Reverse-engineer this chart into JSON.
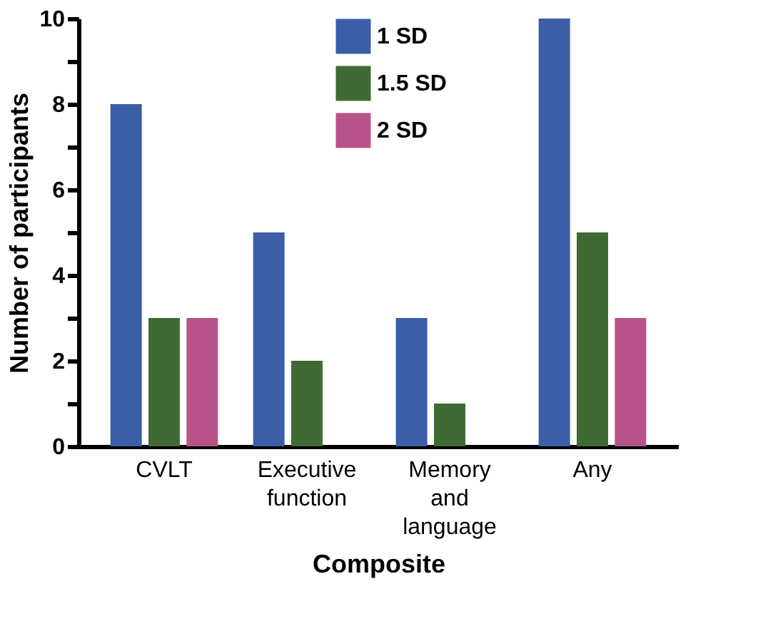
{
  "chart_data": {
    "type": "bar",
    "xlabel": "Composite",
    "ylabel": "Number of participants",
    "categories": [
      "CVLT",
      "Executive function",
      "Memory and language",
      "Any"
    ],
    "series": [
      {
        "name": "1 SD",
        "color": "#3b5ea6",
        "values": [
          8,
          5,
          3,
          10
        ]
      },
      {
        "name": "1.5 SD",
        "color": "#3f6a34",
        "values": [
          3,
          2,
          1,
          5
        ]
      },
      {
        "name": "2 SD",
        "color": "#b8538a",
        "values": [
          3,
          0,
          0,
          3
        ]
      }
    ],
    "ylim": [
      0,
      10
    ],
    "yticks": [
      0,
      {
        "value": 1,
        "label": null
      },
      2,
      {
        "value": 3,
        "label": null
      },
      4,
      {
        "value": 5,
        "label": null
      },
      6,
      {
        "value": 7,
        "label": null
      },
      8,
      {
        "value": 9,
        "label": null
      },
      10
    ],
    "grid": false,
    "legend": "top"
  }
}
